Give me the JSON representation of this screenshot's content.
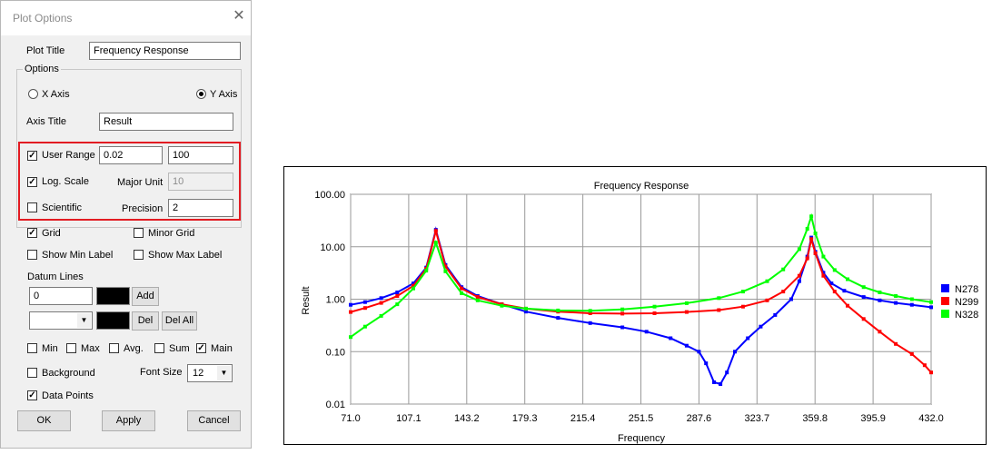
{
  "dialog": {
    "title": "Plot Options",
    "plot_title_label": "Plot Title",
    "plot_title_value": "Frequency Response",
    "options_label": "Options",
    "x_axis_label": "X Axis",
    "y_axis_label": "Y Axis",
    "axis_title_label": "Axis Title",
    "axis_title_value": "Result",
    "user_range_label": "User Range",
    "user_range_min": "0.02",
    "user_range_max": "100",
    "log_scale_label": "Log. Scale",
    "major_unit_label": "Major Unit",
    "major_unit_value": "10",
    "scientific_label": "Scientific",
    "precision_label": "Precision",
    "precision_value": "2",
    "grid_label": "Grid",
    "minor_grid_label": "Minor Grid",
    "show_min_label": "Show Min Label",
    "show_max_label": "Show Max Label",
    "datum_lines_label": "Datum Lines",
    "datum_value": "0",
    "add_label": "Add",
    "del_label": "Del",
    "del_all_label": "Del All",
    "min_label": "Min",
    "max_label": "Max",
    "avg_label": "Avg.",
    "sum_label": "Sum",
    "main_label": "Main",
    "background_label": "Background",
    "font_size_label": "Font Size",
    "font_size_value": "12",
    "data_points_label": "Data Points",
    "ok_label": "OK",
    "apply_label": "Apply",
    "cancel_label": "Cancel",
    "checked_mark": "✓"
  },
  "chart_data": {
    "type": "line",
    "title": "Frequency Response",
    "xlabel": "Frequency",
    "ylabel": "Result",
    "y_scale": "log",
    "xlim": [
      71.0,
      432.0
    ],
    "ylim": [
      0.01,
      100
    ],
    "grid": true,
    "legend_position": "right",
    "x_ticks": [
      "71.0",
      "107.1",
      "143.2",
      "179.3",
      "215.4",
      "251.5",
      "287.6",
      "323.7",
      "359.8",
      "395.9",
      "432.0"
    ],
    "y_ticks": [
      {
        "value": 100,
        "label": "100.00"
      },
      {
        "value": 10,
        "label": "10.00"
      },
      {
        "value": 1,
        "label": "1.00"
      },
      {
        "value": 0.1,
        "label": "0.10"
      },
      {
        "value": 0.01,
        "label": "0.01"
      }
    ],
    "series": [
      {
        "name": "N278",
        "color": "#0000ff",
        "x": [
          71,
          80,
          90,
          100,
          110,
          118,
          124,
          130,
          140,
          150,
          165,
          180,
          200,
          220,
          240,
          255,
          270,
          280,
          287.6,
          292,
          297,
          301,
          305,
          310,
          318,
          326,
          335,
          345,
          350,
          355,
          357.5,
          360,
          365,
          370,
          378,
          390,
          400,
          410,
          420,
          432
        ],
        "y": [
          0.78,
          0.88,
          1.05,
          1.35,
          2.0,
          4.0,
          21,
          4.5,
          1.7,
          1.15,
          0.8,
          0.58,
          0.44,
          0.35,
          0.29,
          0.24,
          0.18,
          0.13,
          0.1,
          0.06,
          0.026,
          0.024,
          0.04,
          0.1,
          0.18,
          0.3,
          0.5,
          1.0,
          2.2,
          6.5,
          15,
          8,
          3.2,
          2.0,
          1.45,
          1.1,
          0.95,
          0.85,
          0.78,
          0.7
        ]
      },
      {
        "name": "N299",
        "color": "#ff0000",
        "x": [
          71,
          80,
          90,
          100,
          110,
          118,
          124,
          130,
          140,
          150,
          165,
          180,
          200,
          220,
          240,
          260,
          280,
          300,
          315,
          330,
          340,
          350,
          355,
          357.5,
          360,
          365,
          372,
          380,
          390,
          400,
          410,
          420,
          428,
          432
        ],
        "y": [
          0.57,
          0.68,
          0.85,
          1.15,
          1.8,
          3.8,
          20,
          4.2,
          1.6,
          1.1,
          0.8,
          0.66,
          0.58,
          0.54,
          0.53,
          0.54,
          0.57,
          0.62,
          0.72,
          0.95,
          1.4,
          2.8,
          6,
          14,
          7.5,
          2.8,
          1.4,
          0.75,
          0.42,
          0.24,
          0.14,
          0.09,
          0.055,
          0.04
        ]
      },
      {
        "name": "N328",
        "color": "#00ff00",
        "x": [
          71,
          80,
          90,
          100,
          110,
          118,
          124,
          130,
          140,
          150,
          165,
          180,
          200,
          220,
          240,
          260,
          280,
          300,
          315,
          330,
          340,
          350,
          355,
          357.5,
          360,
          365,
          372,
          380,
          390,
          400,
          410,
          420,
          432
        ],
        "y": [
          0.19,
          0.3,
          0.48,
          0.8,
          1.6,
          3.5,
          12,
          3.4,
          1.3,
          0.95,
          0.75,
          0.66,
          0.61,
          0.6,
          0.64,
          0.72,
          0.84,
          1.05,
          1.4,
          2.2,
          3.7,
          9,
          22,
          38,
          18,
          6.5,
          3.6,
          2.4,
          1.7,
          1.35,
          1.15,
          1.0,
          0.88
        ]
      }
    ]
  }
}
